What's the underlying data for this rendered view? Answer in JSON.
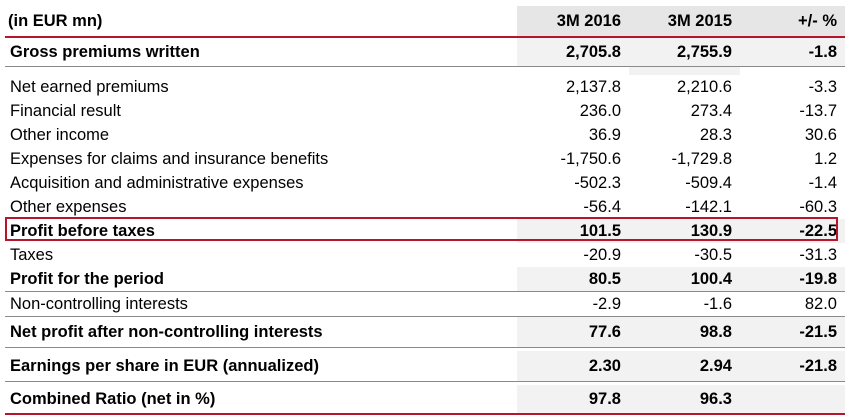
{
  "header": {
    "unit_label": "(in EUR mn)",
    "col1": "3M 2016",
    "col2": "3M 2015",
    "col3": "+/- %"
  },
  "rows": [
    {
      "label": "Gross premiums written",
      "v1": "2,705.8",
      "v2": "2,755.9",
      "v3": "-1.8",
      "bold": true
    },
    {
      "label": "Net earned premiums",
      "v1": "2,137.8",
      "v2": "2,210.6",
      "v3": "-3.3",
      "bold": false
    },
    {
      "label": "Financial result",
      "v1": "236.0",
      "v2": "273.4",
      "v3": "-13.7",
      "bold": false
    },
    {
      "label": "Other income",
      "v1": "36.9",
      "v2": "28.3",
      "v3": "30.6",
      "bold": false
    },
    {
      "label": "Expenses for claims and insurance benefits",
      "v1": "-1,750.6",
      "v2": "-1,729.8",
      "v3": "1.2",
      "bold": false
    },
    {
      "label": "Acquisition and administrative expenses",
      "v1": "-502.3",
      "v2": "-509.4",
      "v3": "-1.4",
      "bold": false
    },
    {
      "label": "Other expenses",
      "v1": "-56.4",
      "v2": "-142.1",
      "v3": "-60.3",
      "bold": false
    },
    {
      "label": "Profit before taxes",
      "v1": "101.5",
      "v2": "130.9",
      "v3": "-22.5",
      "bold": true
    },
    {
      "label": "Taxes",
      "v1": "-20.9",
      "v2": "-30.5",
      "v3": "-31.3",
      "bold": false
    },
    {
      "label": "Profit for the period",
      "v1": "80.5",
      "v2": "100.4",
      "v3": "-19.8",
      "bold": true
    },
    {
      "label": "Non-controlling interests",
      "v1": "-2.9",
      "v2": "-1.6",
      "v3": "82.0",
      "bold": false
    },
    {
      "label": "Net profit after non-controlling interests",
      "v1": "77.6",
      "v2": "98.8",
      "v3": "-21.5",
      "bold": true
    },
    {
      "label": "Earnings per share in EUR (annualized)",
      "v1": "2.30",
      "v2": "2.94",
      "v3": "-21.8",
      "bold": true
    },
    {
      "label": "Combined Ratio (net in %)",
      "v1": "97.8",
      "v2": "96.3",
      "v3": "",
      "bold": true
    }
  ],
  "colors": {
    "accent_red": "#b5162b",
    "shade": "#f2f2f2"
  }
}
